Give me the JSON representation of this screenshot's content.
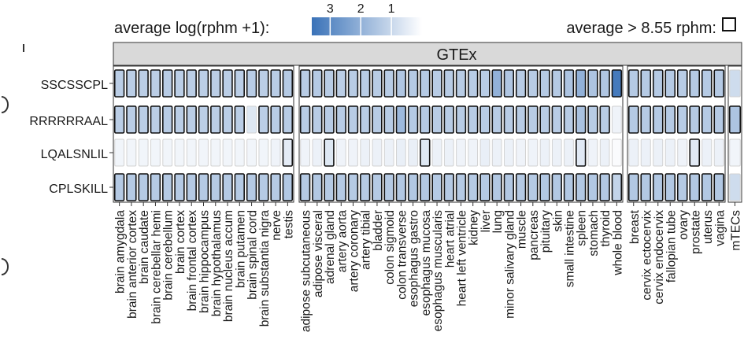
{
  "chart_data": {
    "type": "heatmap",
    "legend": {
      "color_title": "average  log(rphm +1):",
      "color_ticks": [
        "3",
        "2",
        "1"
      ],
      "color_tick_values": [
        3,
        2,
        1
      ],
      "color_range": [
        0,
        3.6
      ],
      "color_low": "#ffffff",
      "color_high": "#3a72b8",
      "outline_title": "average > 8.55 rphm:",
      "outline_threshold_rphm": 8.55
    },
    "strip_label": "GTEx",
    "rows": [
      "SSCSSCPL",
      "RRRRRRAAL",
      "LQALSNLIL",
      "CPLSKILL"
    ],
    "panels": [
      {
        "tissues": [
          "brain amygdala",
          "brain anterior cortex",
          "brain caudate",
          "brain cerebellar hemi",
          "brain cerebellum",
          "brain cortex",
          "brain frontal cortex",
          "brain hippocampus",
          "brain hypothalamus",
          "brain nucleus accum",
          "brain putamen",
          "brain spinal cord",
          "brain substantia nigra",
          "nerve",
          "testis"
        ],
        "values": [
          [
            1.25,
            1.25,
            1.25,
            1.25,
            1.3,
            1.25,
            1.25,
            1.25,
            1.25,
            1.25,
            1.25,
            1.3,
            1.25,
            1.3,
            1.35
          ],
          [
            1.25,
            1.25,
            1.25,
            1.25,
            1.3,
            1.25,
            1.25,
            1.25,
            1.25,
            1.25,
            1.25,
            0.6,
            1.25,
            1.3,
            1.3
          ],
          [
            0.25,
            0.25,
            0.25,
            0.25,
            0.25,
            0.25,
            0.25,
            0.25,
            0.25,
            0.25,
            0.25,
            0.25,
            0.25,
            0.3,
            0.5
          ],
          [
            1.35,
            1.35,
            1.35,
            1.35,
            1.35,
            1.35,
            1.35,
            1.35,
            1.35,
            1.35,
            1.35,
            1.35,
            1.35,
            1.35,
            1.4
          ]
        ],
        "above_threshold": [
          [
            true,
            true,
            true,
            true,
            true,
            true,
            true,
            true,
            true,
            true,
            true,
            true,
            true,
            true,
            true
          ],
          [
            true,
            true,
            true,
            true,
            true,
            true,
            true,
            true,
            true,
            true,
            true,
            false,
            true,
            true,
            true
          ],
          [
            false,
            false,
            false,
            false,
            false,
            false,
            false,
            false,
            false,
            false,
            false,
            false,
            false,
            false,
            true
          ],
          [
            true,
            true,
            true,
            true,
            true,
            true,
            true,
            true,
            true,
            true,
            true,
            true,
            true,
            true,
            true
          ]
        ]
      },
      {
        "tissues": [
          "adipose subcutaneous",
          "adipose visceral",
          "adrenal gland",
          "artery aorta",
          "artery coronary",
          "artery tibial",
          "bladder",
          "colon sigmoid",
          "colon transverse",
          "esophagus gastro",
          "esophagus mucosa",
          "esophagus muscularis",
          "heart atrial",
          "heart left ventricle",
          "kidney",
          "liver",
          "lung",
          "minor salivary gland",
          "muscle",
          "pancreas",
          "pituitary",
          "skin",
          "small intestine",
          "spleen",
          "stomach",
          "thyroid",
          "whole blood"
        ],
        "values": [
          [
            1.3,
            1.35,
            1.3,
            1.25,
            1.3,
            1.3,
            1.3,
            1.3,
            1.45,
            1.35,
            1.35,
            1.3,
            1.3,
            1.3,
            1.3,
            1.3,
            2.0,
            1.45,
            1.3,
            1.3,
            1.35,
            1.35,
            1.5,
            2.0,
            1.5,
            1.45,
            3.4
          ],
          [
            1.3,
            1.3,
            1.3,
            1.3,
            1.3,
            1.3,
            1.3,
            1.3,
            1.8,
            1.35,
            1.35,
            1.3,
            1.3,
            1.3,
            1.3,
            1.3,
            1.3,
            1.3,
            1.3,
            1.3,
            1.3,
            1.3,
            1.3,
            1.55,
            1.3,
            1.3,
            0.3
          ],
          [
            0.3,
            0.35,
            0.6,
            0.3,
            0.3,
            0.35,
            0.35,
            0.35,
            0.4,
            0.4,
            0.6,
            0.35,
            0.35,
            0.3,
            0.3,
            0.4,
            0.35,
            0.35,
            0.3,
            0.3,
            0.35,
            0.35,
            0.35,
            0.55,
            0.3,
            0.35,
            0.1
          ],
          [
            1.35,
            1.4,
            1.35,
            1.35,
            1.35,
            1.35,
            1.35,
            1.35,
            1.4,
            1.4,
            1.4,
            1.35,
            1.35,
            1.35,
            1.35,
            1.35,
            1.4,
            1.4,
            1.35,
            1.35,
            1.4,
            1.4,
            1.4,
            1.4,
            1.4,
            1.4,
            1.1
          ]
        ],
        "above_threshold": [
          [
            true,
            true,
            true,
            true,
            true,
            true,
            true,
            true,
            true,
            true,
            true,
            true,
            true,
            true,
            true,
            true,
            true,
            true,
            true,
            true,
            true,
            true,
            true,
            true,
            true,
            true,
            true
          ],
          [
            true,
            true,
            true,
            true,
            true,
            true,
            true,
            true,
            true,
            true,
            true,
            true,
            true,
            true,
            true,
            true,
            true,
            true,
            true,
            true,
            true,
            true,
            true,
            true,
            true,
            true,
            false
          ],
          [
            false,
            false,
            true,
            false,
            false,
            false,
            false,
            false,
            false,
            false,
            true,
            false,
            false,
            false,
            false,
            false,
            false,
            false,
            false,
            false,
            false,
            false,
            false,
            true,
            false,
            false,
            false
          ],
          [
            true,
            true,
            true,
            true,
            true,
            true,
            true,
            true,
            true,
            true,
            true,
            true,
            true,
            true,
            true,
            true,
            true,
            true,
            true,
            true,
            true,
            true,
            true,
            true,
            true,
            true,
            true
          ]
        ]
      },
      {
        "tissues": [
          "breast",
          "cervix ectocervix",
          "cervix endocervix",
          "fallopian tube",
          "ovary",
          "prostate",
          "uterus",
          "vagina"
        ],
        "values": [
          [
            1.35,
            1.35,
            1.35,
            1.35,
            1.3,
            1.35,
            1.35,
            1.35
          ],
          [
            1.35,
            1.35,
            1.35,
            1.35,
            1.3,
            1.35,
            1.35,
            1.35
          ],
          [
            0.35,
            0.35,
            0.35,
            0.35,
            0.3,
            0.55,
            0.35,
            0.35
          ],
          [
            1.4,
            1.4,
            1.4,
            1.4,
            1.35,
            1.4,
            1.4,
            1.4
          ]
        ],
        "above_threshold": [
          [
            true,
            true,
            true,
            true,
            true,
            true,
            true,
            true
          ],
          [
            true,
            true,
            true,
            true,
            true,
            true,
            true,
            true
          ],
          [
            false,
            false,
            false,
            false,
            false,
            true,
            false,
            false
          ],
          [
            true,
            true,
            true,
            true,
            true,
            true,
            true,
            true
          ]
        ]
      },
      {
        "tissues": [
          "mTECs"
        ],
        "values": [
          [
            0.9
          ],
          [
            1.5
          ],
          [
            0.25
          ],
          [
            0.9
          ]
        ],
        "above_threshold": [
          [
            false
          ],
          [
            true
          ],
          [
            false
          ],
          [
            false
          ]
        ]
      }
    ]
  }
}
